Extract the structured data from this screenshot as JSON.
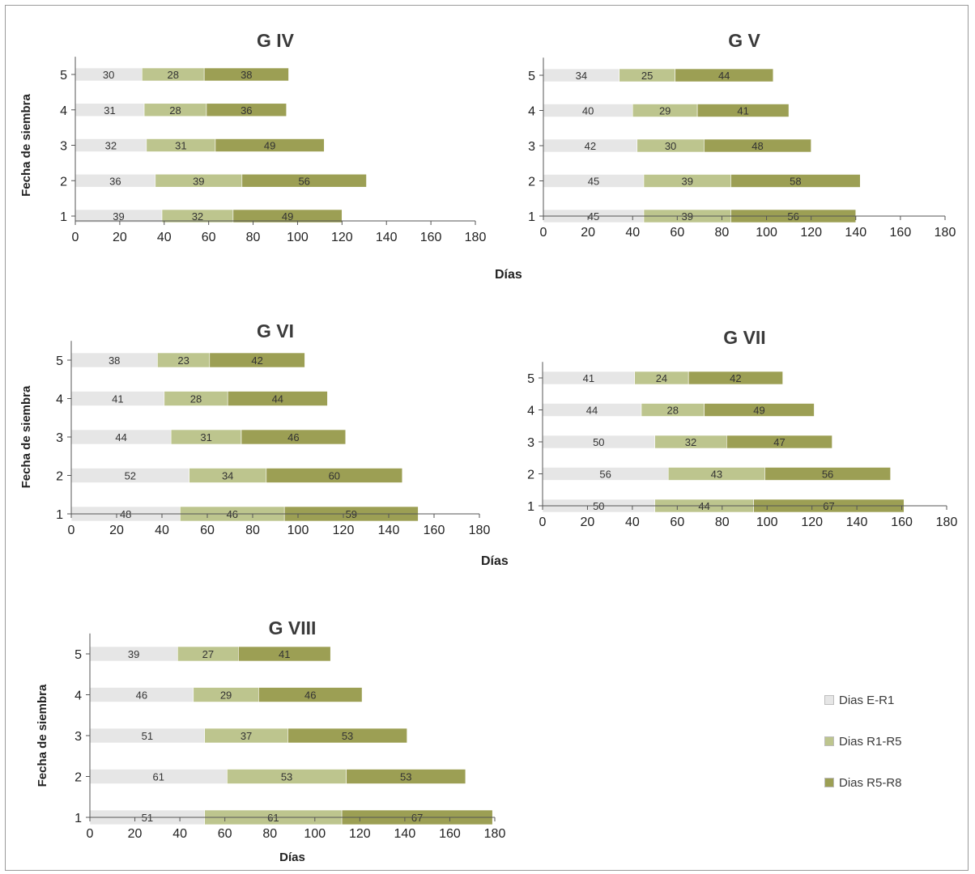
{
  "figure": {
    "xlabel": "Días",
    "legend": {
      "placement": "right",
      "items": [
        {
          "label": "Dias E-R1",
          "color": "#e6e6e6"
        },
        {
          "label": "Dias R1-R5",
          "color": "#bdc58e"
        },
        {
          "label": "Dias R5-R8",
          "color": "#9c9f54"
        }
      ]
    }
  },
  "chart_data": [
    {
      "type": "bar",
      "orientation": "horizontal",
      "stacked": true,
      "title": "G IV",
      "ylabel": "Fecha de siembra",
      "xlabel": "",
      "categories": [
        "1",
        "2",
        "3",
        "4",
        "5"
      ],
      "xlim": [
        0,
        180
      ],
      "xticks": [
        0,
        20,
        40,
        60,
        80,
        100,
        120,
        140,
        160,
        180
      ],
      "grid": false,
      "series": [
        {
          "name": "Dias E-R1",
          "values": [
            39,
            36,
            32,
            31,
            30
          ]
        },
        {
          "name": "Dias R1-R5",
          "values": [
            32,
            39,
            31,
            28,
            28
          ]
        },
        {
          "name": "Dias R5-R8",
          "values": [
            49,
            56,
            49,
            36,
            38
          ]
        }
      ]
    },
    {
      "type": "bar",
      "orientation": "horizontal",
      "stacked": true,
      "title": "G V",
      "ylabel": "",
      "xlabel": "",
      "categories": [
        "1",
        "2",
        "3",
        "4",
        "5"
      ],
      "xlim": [
        0,
        180
      ],
      "xticks": [
        0,
        20,
        40,
        60,
        80,
        100,
        120,
        140,
        160,
        180
      ],
      "grid": false,
      "series": [
        {
          "name": "Dias E-R1",
          "values": [
            45,
            45,
            42,
            40,
            34
          ]
        },
        {
          "name": "Dias R1-R5",
          "values": [
            39,
            39,
            30,
            29,
            25
          ]
        },
        {
          "name": "Dias R5-R8",
          "values": [
            56,
            58,
            48,
            41,
            44
          ]
        }
      ]
    },
    {
      "type": "bar",
      "orientation": "horizontal",
      "stacked": true,
      "title": "G VI",
      "ylabel": "Fecha de siembra",
      "xlabel": "",
      "categories": [
        "1",
        "2",
        "3",
        "4",
        "5"
      ],
      "xlim": [
        0,
        180
      ],
      "xticks": [
        0,
        20,
        40,
        60,
        80,
        100,
        120,
        140,
        160,
        180
      ],
      "grid": false,
      "series": [
        {
          "name": "Dias E-R1",
          "values": [
            48,
            52,
            44,
            41,
            38
          ]
        },
        {
          "name": "Dias R1-R5",
          "values": [
            46,
            34,
            31,
            28,
            23
          ]
        },
        {
          "name": "Dias R5-R8",
          "values": [
            59,
            60,
            46,
            44,
            42
          ]
        }
      ]
    },
    {
      "type": "bar",
      "orientation": "horizontal",
      "stacked": true,
      "title": "G VII",
      "ylabel": "",
      "xlabel": "",
      "categories": [
        "1",
        "2",
        "3",
        "4",
        "5"
      ],
      "xlim": [
        0,
        180
      ],
      "xticks": [
        0,
        20,
        40,
        60,
        80,
        100,
        120,
        140,
        160,
        180
      ],
      "grid": false,
      "series": [
        {
          "name": "Dias E-R1",
          "values": [
            50,
            56,
            50,
            44,
            41
          ]
        },
        {
          "name": "Dias R1-R5",
          "values": [
            44,
            43,
            32,
            28,
            24
          ]
        },
        {
          "name": "Dias R5-R8",
          "values": [
            67,
            56,
            47,
            49,
            42
          ]
        }
      ]
    },
    {
      "type": "bar",
      "orientation": "horizontal",
      "stacked": true,
      "title": "G VIII",
      "ylabel": "Fecha de siembra",
      "xlabel": "Días",
      "categories": [
        "1",
        "2",
        "3",
        "4",
        "5"
      ],
      "xlim": [
        0,
        180
      ],
      "xticks": [
        0,
        20,
        40,
        60,
        80,
        100,
        120,
        140,
        160,
        180
      ],
      "grid": false,
      "series": [
        {
          "name": "Dias E-R1",
          "values": [
            51,
            61,
            51,
            46,
            39
          ]
        },
        {
          "name": "Dias R1-R5",
          "values": [
            61,
            53,
            37,
            29,
            27
          ]
        },
        {
          "name": "Dias R5-R8",
          "values": [
            67,
            53,
            53,
            46,
            41
          ]
        }
      ]
    }
  ]
}
